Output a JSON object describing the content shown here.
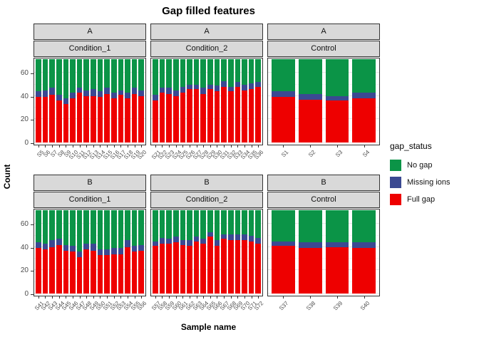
{
  "title": "Gap filled features",
  "axes": {
    "x_title": "Sample name",
    "y_title": "Count",
    "y_ticks": [
      0,
      20,
      40,
      60
    ]
  },
  "legend": {
    "title": "gap_status",
    "items": [
      {
        "label": "No gap",
        "color": "#0B9447"
      },
      {
        "label": "Missing ions",
        "color": "#3B4992"
      },
      {
        "label": "Full gap",
        "color": "#EE0000"
      }
    ]
  },
  "chart_data": {
    "type": "bar",
    "stacked": true,
    "total_per_bar": 72,
    "ylim": [
      0,
      73.5
    ],
    "grid": "on",
    "legend_position": "right",
    "stack_order_top_to_bottom": [
      "No gap",
      "Missing ions",
      "Full gap"
    ],
    "facet_rows": [
      "A",
      "B"
    ],
    "facet_cols": [
      "Condition_1",
      "Condition_2",
      "Control"
    ],
    "panels": [
      {
        "row": "A",
        "col": "Condition_1",
        "samples": [
          "S5",
          "S6",
          "S7",
          "S8",
          "S9",
          "S10",
          "S11",
          "S12",
          "S13",
          "S14",
          "S15",
          "S16",
          "S17",
          "S18",
          "S19",
          "S20"
        ],
        "no_gap": [
          28,
          27,
          25,
          31,
          34,
          29,
          25,
          27,
          26,
          28,
          25,
          29,
          27,
          29,
          25,
          27
        ],
        "missing_ions": [
          5,
          6,
          6,
          5,
          5,
          5,
          4,
          5,
          6,
          5,
          5,
          5,
          4,
          5,
          5,
          5
        ],
        "full_gap": [
          39,
          39,
          41,
          36,
          33,
          38,
          43,
          40,
          40,
          39,
          42,
          38,
          41,
          38,
          42,
          40
        ]
      },
      {
        "row": "A",
        "col": "Condition_2",
        "samples": [
          "S21",
          "S22",
          "S23",
          "S24",
          "S25",
          "S26",
          "S27",
          "S28",
          "S29",
          "S30",
          "S31",
          "S32",
          "S33",
          "S34",
          "S35",
          "S36"
        ],
        "no_gap": [
          31,
          25,
          25,
          27,
          24,
          22,
          22,
          25,
          22,
          23,
          19,
          24,
          20,
          22,
          21,
          20
        ],
        "missing_ions": [
          5,
          4,
          5,
          5,
          5,
          4,
          4,
          5,
          4,
          5,
          5,
          4,
          4,
          5,
          5,
          4
        ],
        "full_gap": [
          36,
          43,
          42,
          40,
          43,
          46,
          46,
          42,
          46,
          44,
          48,
          44,
          48,
          45,
          46,
          48
        ]
      },
      {
        "row": "A",
        "col": "Control",
        "samples": [
          "S1",
          "S2",
          "S3",
          "S4"
        ],
        "no_gap": [
          28,
          30,
          32,
          29
        ],
        "missing_ions": [
          5,
          5,
          4,
          5
        ],
        "full_gap": [
          39,
          37,
          36,
          38
        ]
      },
      {
        "row": "B",
        "col": "Condition_1",
        "samples": [
          "S41",
          "S42",
          "S43",
          "S44",
          "S45",
          "S46",
          "S47",
          "S48",
          "S49",
          "S50",
          "S51",
          "S52",
          "S53",
          "S54",
          "S55",
          "S56"
        ],
        "no_gap": [
          28,
          29,
          26,
          25,
          30,
          31,
          36,
          29,
          29,
          34,
          34,
          33,
          33,
          26,
          31,
          30
        ],
        "missing_ions": [
          5,
          5,
          6,
          5,
          5,
          5,
          5,
          5,
          6,
          5,
          5,
          5,
          5,
          6,
          5,
          5
        ],
        "full_gap": [
          39,
          38,
          40,
          42,
          37,
          36,
          31,
          38,
          37,
          33,
          33,
          34,
          34,
          40,
          36,
          37
        ]
      },
      {
        "row": "B",
        "col": "Condition_2",
        "samples": [
          "S57",
          "S58",
          "S59",
          "S60",
          "S61",
          "S62",
          "S63",
          "S64",
          "S65",
          "S66",
          "S67",
          "S68",
          "S69",
          "S70",
          "S71",
          "S72"
        ],
        "no_gap": [
          27,
          24,
          25,
          23,
          26,
          26,
          23,
          25,
          19,
          26,
          21,
          21,
          21,
          21,
          22,
          24
        ],
        "missing_ions": [
          4,
          5,
          4,
          5,
          4,
          5,
          4,
          4,
          4,
          5,
          4,
          5,
          5,
          5,
          5,
          5
        ],
        "full_gap": [
          41,
          43,
          43,
          44,
          42,
          41,
          45,
          43,
          49,
          41,
          47,
          46,
          46,
          46,
          45,
          43
        ]
      },
      {
        "row": "B",
        "col": "Control",
        "samples": [
          "S37",
          "S38",
          "S39",
          "S40"
        ],
        "no_gap": [
          27,
          28,
          28,
          28
        ],
        "missing_ions": [
          4,
          5,
          4,
          5
        ],
        "full_gap": [
          41,
          39,
          40,
          39
        ]
      }
    ]
  }
}
